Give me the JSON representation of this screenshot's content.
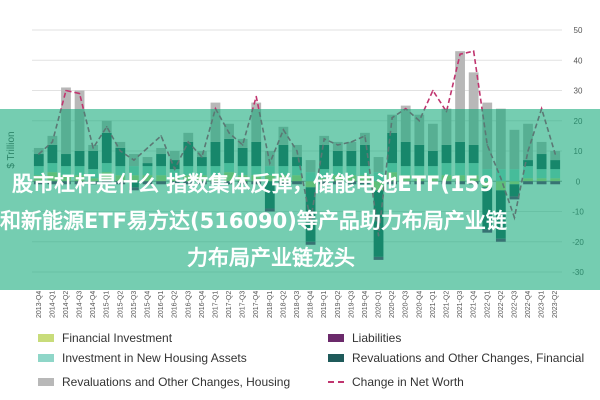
{
  "chart_data": {
    "type": "bar",
    "title": "",
    "xlabel": "",
    "ylabel": "$ Trillion",
    "ylim": [
      -30,
      50
    ],
    "yticks": [
      -30,
      -20,
      -10,
      0,
      10,
      20,
      30,
      40,
      50
    ],
    "stacked": true,
    "categories": [
      "2013-Q4",
      "2014-Q1",
      "2014-Q2",
      "2014-Q3",
      "2014-Q4",
      "2015-Q1",
      "2015-Q2",
      "2015-Q3",
      "2015-Q4",
      "2016-Q1",
      "2016-Q2",
      "2016-Q3",
      "2016-Q4",
      "2017-Q1",
      "2017-Q2",
      "2017-Q3",
      "2017-Q4",
      "2018-Q1",
      "2018-Q2",
      "2018-Q3",
      "2018-Q4",
      "2019-Q1",
      "2019-Q2",
      "2019-Q3",
      "2019-Q4",
      "2020-Q1",
      "2020-Q2",
      "2020-Q3",
      "2020-Q4",
      "2021-Q1",
      "2021-Q2",
      "2021-Q3",
      "2021-Q4",
      "2022-Q1",
      "2022-Q2",
      "2022-Q3",
      "2022-Q4",
      "2023-Q1",
      "2023-Q2"
    ],
    "series": [
      {
        "name": "Financial Investment",
        "color": "#c8dc7a",
        "values": [
          2,
          3,
          2,
          2,
          1,
          3,
          2,
          2,
          2,
          2,
          1,
          2,
          2,
          2,
          3,
          2,
          2,
          2,
          2,
          2,
          -2,
          1,
          2,
          2,
          2,
          -3,
          3,
          2,
          2,
          2,
          2,
          2,
          2,
          -2,
          -3,
          -1,
          1,
          1,
          1
        ]
      },
      {
        "name": "Investment in New Housing Assets",
        "color": "#8fd6c8",
        "values": [
          3,
          3,
          3,
          3,
          3,
          3,
          3,
          3,
          3,
          3,
          3,
          3,
          3,
          3,
          3,
          3,
          3,
          3,
          3,
          3,
          3,
          3,
          3,
          3,
          3,
          3,
          3,
          3,
          3,
          3,
          4,
          4,
          4,
          4,
          4,
          4,
          4,
          3,
          3
        ]
      },
      {
        "name": "Revaluations and Other Changes, Financial",
        "color": "#1f5a5a",
        "values": [
          4,
          6,
          4,
          5,
          6,
          10,
          6,
          -2,
          1,
          4,
          3,
          8,
          3,
          8,
          8,
          6,
          8,
          -9,
          7,
          3,
          -18,
          8,
          5,
          5,
          7,
          -22,
          10,
          8,
          7,
          5,
          6,
          7,
          6,
          -14,
          -16,
          -4,
          2,
          5,
          3
        ]
      },
      {
        "name": "Revaluations and Other Changes, Housing",
        "color": "#b8b8b8",
        "values": [
          2,
          3,
          22,
          20,
          2,
          4,
          2,
          4,
          2,
          2,
          3,
          3,
          2,
          13,
          5,
          3,
          13,
          5,
          6,
          4,
          4,
          3,
          3,
          3,
          4,
          5,
          6,
          12,
          10,
          9,
          12,
          30,
          24,
          22,
          20,
          13,
          12,
          4,
          3
        ]
      },
      {
        "name": "Liabilities",
        "color": "#6b2a6b",
        "values": [
          -1,
          -1,
          -1,
          -1,
          -1,
          -1,
          -1,
          -1,
          -1,
          -1,
          -1,
          -1,
          -1,
          -1,
          -1,
          -1,
          -1,
          -1,
          -1,
          -1,
          -1,
          -1,
          -1,
          -1,
          -1,
          -1,
          -1,
          -1,
          -1,
          -1,
          -1,
          -1,
          -1,
          -1,
          -1,
          -1,
          -1,
          -1,
          -1
        ]
      }
    ],
    "line": {
      "name": "Change in Net Worth",
      "color": "#c0356f",
      "values": [
        9,
        13,
        30,
        29,
        11,
        18,
        10,
        7,
        11,
        15,
        4,
        13,
        8,
        24,
        16,
        12,
        28,
        6,
        17,
        10,
        -13,
        14,
        12,
        13,
        15,
        -18,
        21,
        24,
        20,
        30,
        23,
        42,
        43,
        12,
        1,
        -12,
        10,
        24,
        9
      ]
    },
    "legend_placement": "bottom",
    "grid": true
  },
  "legend": [
    {
      "label": "Financial Investment",
      "kind": "swatch",
      "color": "#c8dc7a"
    },
    {
      "label": "Liabilities",
      "kind": "swatch",
      "color": "#6b2a6b"
    },
    {
      "label": "Investment in New Housing Assets",
      "kind": "swatch",
      "color": "#8fd6c8"
    },
    {
      "label": "Revaluations and Other Changes, Financial",
      "kind": "swatch",
      "color": "#1f5a5a"
    },
    {
      "label": "Revaluations and Other Changes, Housing",
      "kind": "swatch",
      "color": "#b8b8b8"
    },
    {
      "label": "Change in Net Worth",
      "kind": "dash",
      "color": "#c0356f"
    }
  ],
  "overlay": {
    "line1": "股市杠杆是什么 指数集体反弹，储能电池ETF(159",
    "line2": "和新能源ETF易方达(516090)等产品助力布局产业链",
    "line3": "力布局产业链龙头",
    "color": "#12a878"
  }
}
